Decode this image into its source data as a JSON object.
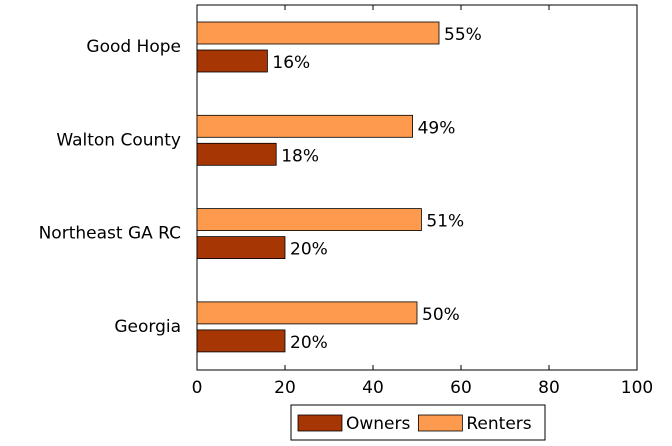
{
  "chart_data": {
    "type": "hbar",
    "categories": [
      "Good Hope",
      "Walton County",
      "Northeast GA RC",
      "Georgia"
    ],
    "series": [
      {
        "name": "Owners",
        "color": "#a63603",
        "values": [
          16,
          18,
          20,
          20
        ],
        "value_labels": [
          "16%",
          "18%",
          "20%",
          "20%"
        ]
      },
      {
        "name": "Renters",
        "color": "#fd9a4e",
        "values": [
          55,
          49,
          51,
          50
        ],
        "value_labels": [
          "55%",
          "49%",
          "51%",
          "50%"
        ]
      }
    ],
    "xlim": [
      0,
      100
    ],
    "xticks": [
      0,
      20,
      40,
      60,
      80,
      100
    ],
    "legend": "bottom"
  }
}
